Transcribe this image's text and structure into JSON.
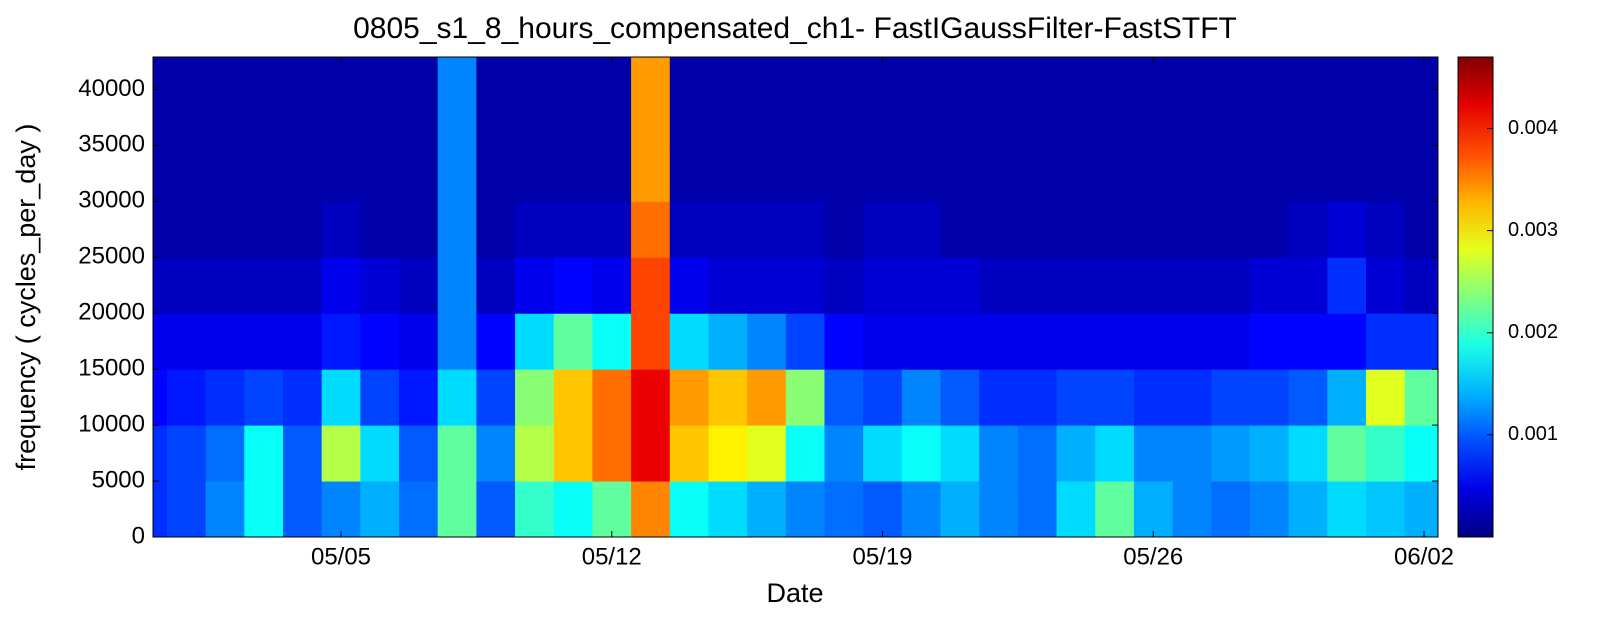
{
  "chart_data": {
    "type": "heatmap",
    "title": "0805_s1_8_hours_compensated_ch1- FastIGaussFilter-FastSTFT",
    "x_label": "Date",
    "y_label": "frequency ( cycles_per_day )",
    "x": [
      "04/30",
      "05/01",
      "05/02",
      "05/03",
      "05/04",
      "05/05",
      "05/06",
      "05/07",
      "05/08",
      "05/09",
      "05/10",
      "05/11",
      "05/12",
      "05/13",
      "05/14",
      "05/15",
      "05/16",
      "05/17",
      "05/18",
      "05/19",
      "05/20",
      "05/21",
      "05/22",
      "05/23",
      "05/24",
      "05/25",
      "05/26",
      "05/27",
      "05/28",
      "05/29",
      "05/30",
      "05/31",
      "06/01",
      "06/02"
    ],
    "xticks": [
      "05/05",
      "05/12",
      "05/19",
      "05/26",
      "06/02"
    ],
    "y_edges": [
      0,
      5000,
      10000,
      15000,
      20000,
      25000,
      30000,
      35000,
      40000,
      42900
    ],
    "ylim": [
      0,
      42900
    ],
    "yticks": [
      0,
      5000,
      10000,
      15000,
      20000,
      25000,
      30000,
      35000,
      40000
    ],
    "colormap": "jet",
    "clim": [
      0,
      0.0047
    ],
    "cticks": [
      0.001,
      0.002,
      0.003,
      0.004
    ],
    "values": [
      [
        0.0008,
        0.0009,
        0.0012,
        0.0018,
        0.001,
        0.0012,
        0.0014,
        0.0011,
        0.0022,
        0.001,
        0.002,
        0.0018,
        0.0022,
        0.0035,
        0.0018,
        0.0016,
        0.0014,
        0.0012,
        0.0011,
        0.001,
        0.0012,
        0.0014,
        0.0012,
        0.0011,
        0.0016,
        0.0022,
        0.0014,
        0.0012,
        0.0011,
        0.0012,
        0.0014,
        0.0016,
        0.0015,
        0.0014
      ],
      [
        0.0008,
        0.0009,
        0.0011,
        0.0018,
        0.001,
        0.0026,
        0.0016,
        0.001,
        0.0022,
        0.0012,
        0.0026,
        0.0032,
        0.0036,
        0.0042,
        0.0032,
        0.003,
        0.0028,
        0.0018,
        0.0012,
        0.0016,
        0.0018,
        0.0016,
        0.0012,
        0.0011,
        0.0014,
        0.0016,
        0.0012,
        0.0012,
        0.0013,
        0.0014,
        0.0016,
        0.0022,
        0.002,
        0.0018
      ],
      [
        0.0006,
        0.0007,
        0.0008,
        0.0009,
        0.0008,
        0.0016,
        0.0009,
        0.0007,
        0.0016,
        0.0009,
        0.0024,
        0.0032,
        0.0036,
        0.0042,
        0.0034,
        0.0032,
        0.0034,
        0.0024,
        0.001,
        0.0009,
        0.0012,
        0.001,
        0.0008,
        0.0008,
        0.0009,
        0.0009,
        0.0008,
        0.0008,
        0.0009,
        0.0009,
        0.001,
        0.0014,
        0.0028,
        0.0022
      ],
      [
        0.0005,
        0.0005,
        0.0005,
        0.0005,
        0.0005,
        0.0007,
        0.0006,
        0.0005,
        0.0012,
        0.0006,
        0.0016,
        0.0022,
        0.0018,
        0.0038,
        0.0016,
        0.0014,
        0.0012,
        0.0009,
        0.0006,
        0.0005,
        0.0005,
        0.0005,
        0.0005,
        0.0005,
        0.0005,
        0.0005,
        0.0005,
        0.0005,
        0.0005,
        0.0006,
        0.0006,
        0.0006,
        0.0008,
        0.0008
      ],
      [
        0.0003,
        0.0003,
        0.0003,
        0.0003,
        0.0003,
        0.0005,
        0.0004,
        0.0003,
        0.0012,
        0.0003,
        0.0005,
        0.0006,
        0.0005,
        0.0038,
        0.0005,
        0.0004,
        0.0004,
        0.0004,
        0.0003,
        0.0004,
        0.0004,
        0.0004,
        0.0003,
        0.0003,
        0.0003,
        0.0003,
        0.0003,
        0.0003,
        0.0003,
        0.0004,
        0.0004,
        0.0008,
        0.0004,
        0.0003
      ],
      [
        0.0002,
        0.0002,
        0.0002,
        0.0002,
        0.0002,
        0.0003,
        0.0002,
        0.0002,
        0.0012,
        0.0002,
        0.0003,
        0.0003,
        0.0003,
        0.0036,
        0.0003,
        0.0003,
        0.0003,
        0.0003,
        0.0002,
        0.0003,
        0.0003,
        0.0002,
        0.0002,
        0.0002,
        0.0002,
        0.0002,
        0.0002,
        0.0002,
        0.0002,
        0.0002,
        0.0003,
        0.0004,
        0.0003,
        0.0002
      ],
      [
        0.0002,
        0.0002,
        0.0002,
        0.0002,
        0.0002,
        0.0002,
        0.0002,
        0.0002,
        0.0012,
        0.0002,
        0.0002,
        0.0002,
        0.0002,
        0.0034,
        0.0002,
        0.0002,
        0.0002,
        0.0002,
        0.0002,
        0.0002,
        0.0002,
        0.0002,
        0.0002,
        0.0002,
        0.0002,
        0.0002,
        0.0002,
        0.0002,
        0.0002,
        0.0002,
        0.0002,
        0.0002,
        0.0002,
        0.0002
      ],
      [
        0.0002,
        0.0002,
        0.0002,
        0.0002,
        0.0002,
        0.0002,
        0.0002,
        0.0002,
        0.0012,
        0.0002,
        0.0002,
        0.0002,
        0.0002,
        0.0034,
        0.0002,
        0.0002,
        0.0002,
        0.0002,
        0.0002,
        0.0002,
        0.0002,
        0.0002,
        0.0002,
        0.0002,
        0.0002,
        0.0002,
        0.0002,
        0.0002,
        0.0002,
        0.0002,
        0.0002,
        0.0002,
        0.0002,
        0.0002
      ],
      [
        0.0002,
        0.0002,
        0.0002,
        0.0002,
        0.0002,
        0.0002,
        0.0002,
        0.0002,
        0.0012,
        0.0002,
        0.0002,
        0.0002,
        0.0002,
        0.0034,
        0.0002,
        0.0002,
        0.0002,
        0.0002,
        0.0002,
        0.0002,
        0.0002,
        0.0002,
        0.0002,
        0.0002,
        0.0002,
        0.0002,
        0.0002,
        0.0002,
        0.0002,
        0.0002,
        0.0002,
        0.0002,
        0.0002,
        0.0002
      ]
    ]
  }
}
